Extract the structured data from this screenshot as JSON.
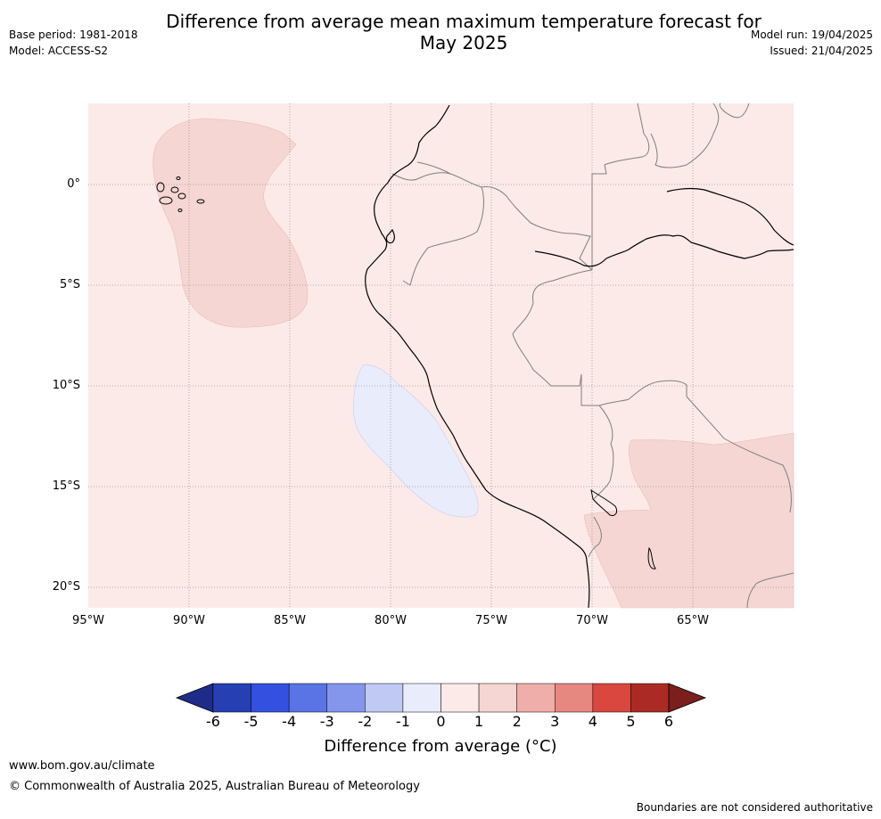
{
  "header": {
    "title_line1": "Difference from average mean maximum temperature forecast for",
    "title_line2": "May 2025",
    "base_period": "Base period: 1981-2018",
    "model": "Model: ACCESS-S2",
    "model_run": "Model run: 19/04/2025",
    "issued": "Issued: 21/04/2025"
  },
  "map": {
    "lat_labels": [
      "0°",
      "5°S",
      "10°S",
      "15°S",
      "20°S"
    ],
    "lon_labels": [
      "95°W",
      "90°W",
      "85°W",
      "80°W",
      "75°W",
      "70°W",
      "65°W"
    ],
    "regions": [
      {
        "name": "background-anomaly",
        "category": "0 to 1",
        "color": "#fbeae8"
      },
      {
        "name": "galapagos-warm-anomaly",
        "category": "1 to 2",
        "color": "#f5d6d3"
      },
      {
        "name": "peru-coast-cool-anomaly",
        "category": "-1 to 0",
        "color": "#e9ecfb"
      },
      {
        "name": "bolivia-warm-anomaly",
        "category": "1 to 2",
        "color": "#f5d6d3"
      }
    ]
  },
  "colorbar": {
    "title": "Difference from average (°C)",
    "tick_labels": [
      "-6",
      "-5",
      "-4",
      "-3",
      "-2",
      "-1",
      "0",
      "1",
      "2",
      "3",
      "4",
      "5",
      "6"
    ],
    "colors": [
      "#1f2b88",
      "#263fb3",
      "#3350e0",
      "#5a73e5",
      "#8495ec",
      "#c0c9f4",
      "#e9ecfb",
      "#fbeae8",
      "#f5d6d3",
      "#efaea9",
      "#e68780",
      "#d9473e",
      "#ac2a24",
      "#7a1f1b"
    ]
  },
  "footer": {
    "website": "www.bom.gov.au/climate",
    "copyright": "© Commonwealth of Australia 2025, Australian Bureau of Meteorology",
    "disclaimer": "Boundaries are not considered authoritative"
  }
}
